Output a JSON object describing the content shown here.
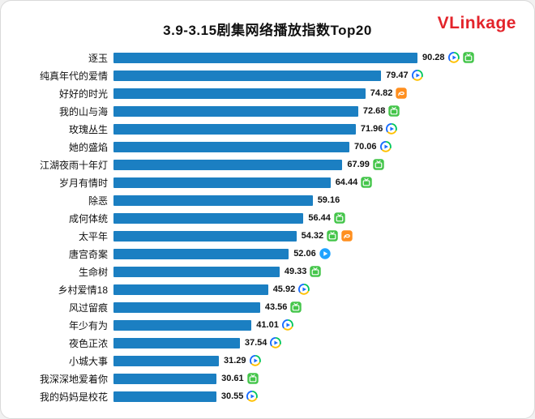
{
  "header": {
    "title": "3.9-3.15剧集网络播放指数Top20",
    "logo": "VLinkage",
    "logo_color": "#e3242b"
  },
  "chart_data": {
    "type": "bar",
    "orientation": "horizontal",
    "title": "3.9-3.15剧集网络播放指数Top20",
    "bar_color": "#1b7fc2",
    "value_format": "2-decimals",
    "legend": "none",
    "grid": false,
    "categories": [
      "逐玉",
      "纯真年代的爱情",
      "好好的时光",
      "我的山与海",
      "玫瑰丛生",
      "她的盛焰",
      "江湖夜雨十年灯",
      "岁月有情时",
      "除恶",
      "成何体统",
      "太平年",
      "唐宫奇案",
      "生命树",
      "乡村爱情18",
      "风过留痕",
      "年少有为",
      "夜色正浓",
      "小城大事",
      "我深深地爱着你",
      "我的妈妈是校花"
    ],
    "values": [
      90.28,
      79.47,
      74.82,
      72.68,
      71.96,
      70.06,
      67.99,
      64.44,
      59.16,
      56.44,
      54.32,
      52.06,
      49.33,
      45.92,
      43.56,
      41.01,
      37.54,
      31.29,
      30.61,
      30.55
    ],
    "platforms": [
      [
        "tencent-video",
        "iqiyi"
      ],
      [
        "tencent-video"
      ],
      [
        "mgtv"
      ],
      [
        "iqiyi"
      ],
      [
        "tencent-video"
      ],
      [
        "tencent-video"
      ],
      [
        "iqiyi"
      ],
      [
        "iqiyi"
      ],
      [],
      [
        "iqiyi"
      ],
      [
        "iqiyi",
        "mgtv"
      ],
      [
        "youku"
      ],
      [
        "iqiyi"
      ],
      [
        "tencent-video"
      ],
      [
        "iqiyi"
      ],
      [
        "tencent-video"
      ],
      [
        "tencent-video"
      ],
      [
        "tencent-video"
      ],
      [
        "iqiyi"
      ],
      [
        "tencent-video"
      ]
    ],
    "platform_icons": {
      "tencent-video": {
        "name": "tencent-video-icon",
        "shape": "tricolor-play-circle",
        "colors": [
          "#1a6dff",
          "#00c65e",
          "#ffc000"
        ]
      },
      "iqiyi": {
        "name": "iqiyi-icon",
        "shape": "green-rounded-square",
        "colors": [
          "#44c54a"
        ]
      },
      "mgtv": {
        "name": "mgtv-icon",
        "shape": "orange-rounded-square",
        "colors": [
          "#ff8f1f"
        ]
      },
      "youku": {
        "name": "youku-icon",
        "shape": "blue-play-circle",
        "colors": [
          "#1fa3ff"
        ]
      }
    }
  }
}
